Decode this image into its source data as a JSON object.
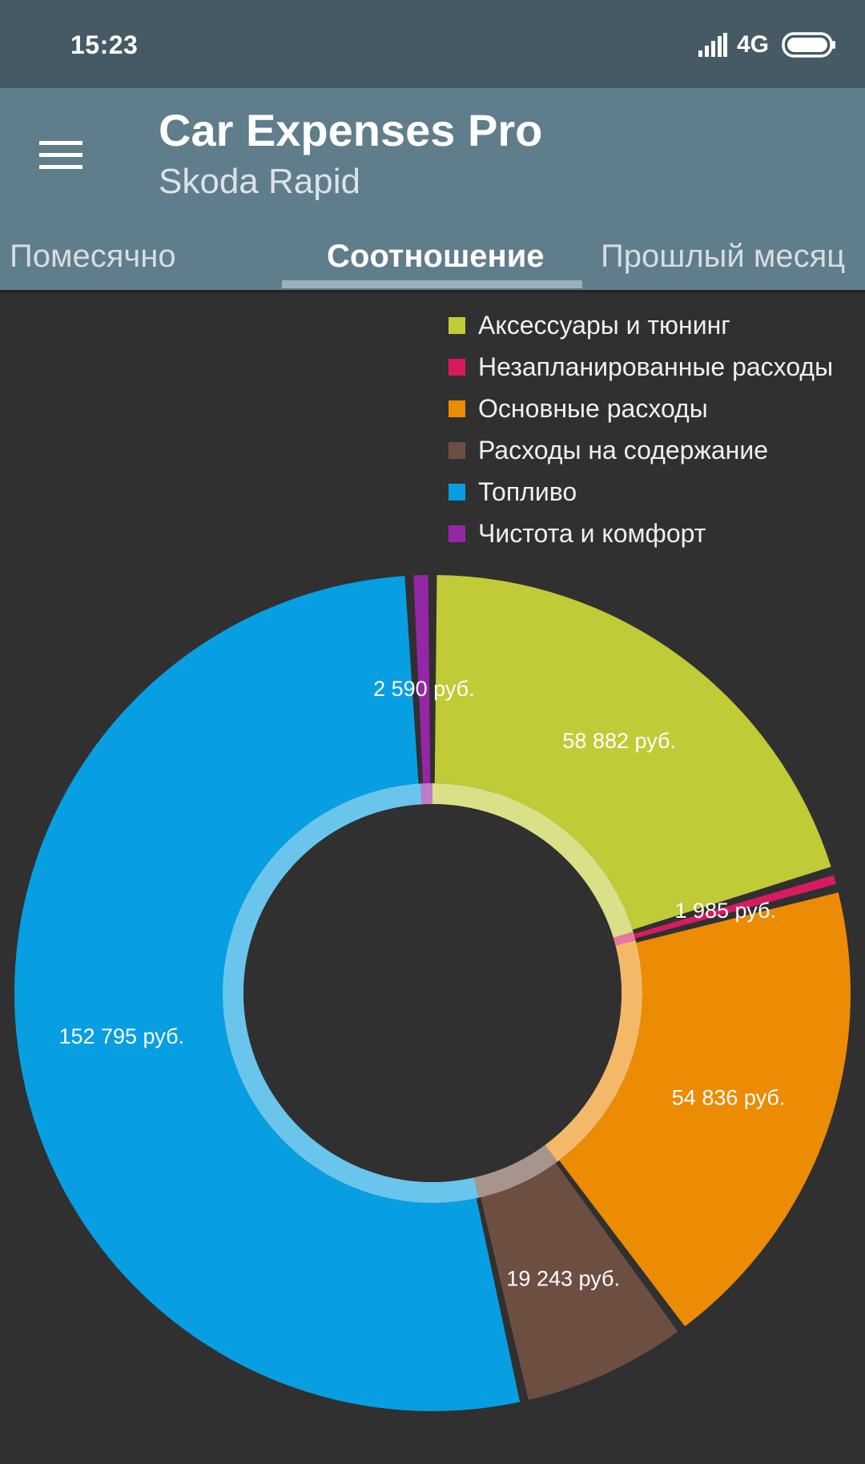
{
  "status_bar": {
    "time": "15:23",
    "network": "4G",
    "icons": [
      "signal-icon",
      "battery-icon"
    ]
  },
  "app_bar": {
    "menu_icon": "hamburger-menu-icon",
    "title": "Car Expenses Pro",
    "subtitle": "Skoda Rapid"
  },
  "tabs": [
    {
      "label": "Помесячно",
      "active": false
    },
    {
      "label": "Соотношение",
      "active": true
    },
    {
      "label": "Прошлый месяц",
      "active": false
    }
  ],
  "colors": {
    "status_bar": "#455a64",
    "app_bar": "#607d8b",
    "background": "#303030"
  },
  "chart_data": {
    "type": "pie",
    "variant": "donut",
    "legend_position": "top-right",
    "unit": "руб.",
    "categories": [
      "Аксессуары и тюнинг",
      "Незапланированные расходы",
      "Основные расходы",
      "Расходы на содержание",
      "Топливо",
      "Чистота и комфорт"
    ],
    "values": [
      58882,
      1985,
      54836,
      19243,
      152795,
      2590
    ],
    "value_labels": [
      "58 882 руб.",
      "1 985 руб.",
      "54 836 руб.",
      "19 243 руб.",
      "152 795 руб.",
      "2 590 руб."
    ],
    "colors": [
      "#c0cb37",
      "#d81b60",
      "#ec8b04",
      "#6d4f42",
      "#079ee2",
      "#9427a6"
    ]
  }
}
